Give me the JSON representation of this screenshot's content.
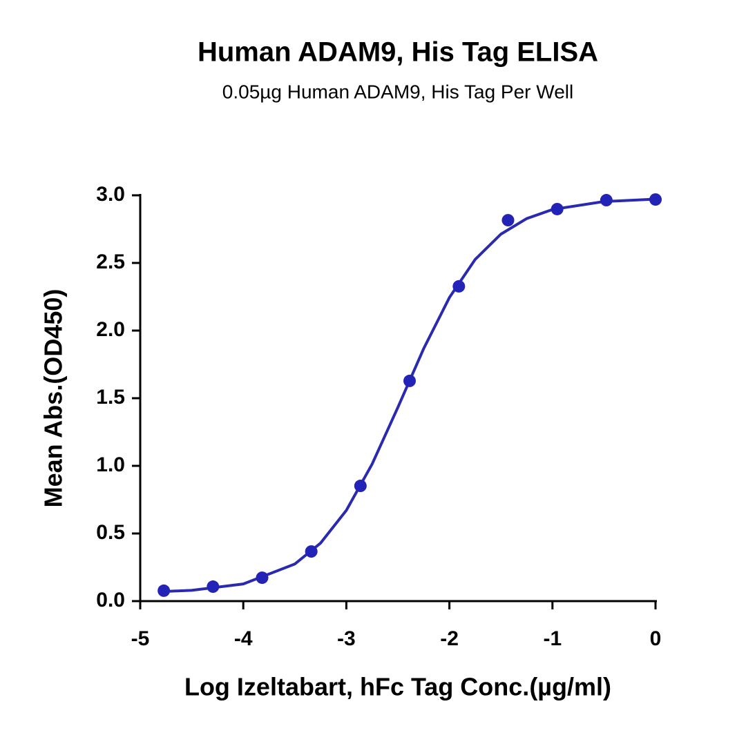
{
  "chart_data": {
    "type": "scatter",
    "title": "Human ADAM9, His Tag ELISA",
    "subtitle": "0.05µg Human ADAM9, His Tag Per Well",
    "x_label": "Log Izeltabart, hFc Tag Conc.(µg/ml)",
    "y_label": "Mean Abs.(OD450)",
    "xlim": [
      -5,
      0
    ],
    "xticks": [
      -5,
      -4,
      -3,
      -2,
      -1,
      0
    ],
    "ylim": [
      0,
      3
    ],
    "yticks": [
      {
        "value": 0,
        "label": "0.0"
      },
      {
        "value": 0.5,
        "label": "0.5"
      },
      {
        "value": 1,
        "label": "1.0"
      },
      {
        "value": 1.5,
        "label": "1.5"
      },
      {
        "value": 2,
        "label": "2.0"
      },
      {
        "value": 2.5,
        "label": "2.5"
      },
      {
        "value": 3,
        "label": "3.0"
      }
    ],
    "series": [
      {
        "kind": "points",
        "color": "#2323b8",
        "x": [
          -4.771,
          -4.294,
          -3.817,
          -3.34,
          -2.863,
          -2.386,
          -1.908,
          -1.431,
          -0.954,
          -0.477,
          0
        ],
        "values": [
          0.077,
          0.107,
          0.173,
          0.367,
          0.852,
          1.628,
          2.327,
          2.816,
          2.898,
          2.964,
          2.969
        ]
      },
      {
        "kind": "fit",
        "color": "#2a2ab0",
        "x": [
          -4.77,
          -4.5,
          -4,
          -3.5,
          -3.25,
          -3,
          -2.75,
          -2.5,
          -2.25,
          -2,
          -1.75,
          -1.5,
          -1.25,
          -1,
          -0.5,
          0
        ],
        "values": [
          0.071,
          0.08,
          0.127,
          0.274,
          0.429,
          0.671,
          1.013,
          1.432,
          1.866,
          2.244,
          2.526,
          2.713,
          2.828,
          2.895,
          2.954,
          2.972
        ]
      }
    ]
  }
}
